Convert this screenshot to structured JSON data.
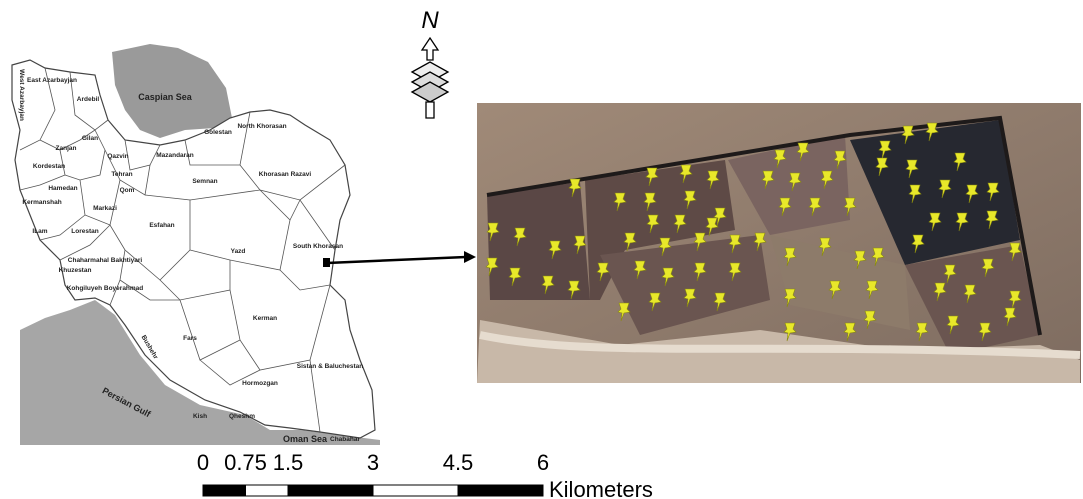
{
  "map": {
    "north_label": "N",
    "seas": {
      "caspian": "Caspian Sea",
      "persian_gulf": "Persian Gulf",
      "oman": "Oman Sea"
    },
    "provinces": [
      "East Azarbayjan",
      "Ardebil",
      "West Azarbayjan",
      "Gilan",
      "Zanjan",
      "Qazvin",
      "Mazandaran",
      "Golestan",
      "North Khorasan",
      "Kordestan",
      "Hamedan",
      "Tehran",
      "Qom",
      "Semnan",
      "Khorasan Razavi",
      "Kermanshah",
      "Markazi",
      "Esfahan",
      "ILam",
      "Lorestan",
      "Yazd",
      "South Khorasan",
      "Khuzestan",
      "Chaharmahal Bakhtiyari",
      "Kohgiluyeh Boyerahmad",
      "Fars",
      "Kerman",
      "Bushehr",
      "Hormozgan",
      "Sistan & Baluchestan",
      "Kish",
      "Qheshm",
      "Chabahar"
    ],
    "scale": {
      "ticks": [
        0,
        0.75,
        1.5,
        3,
        4.5,
        6
      ],
      "unit": "Kilometers"
    }
  }
}
